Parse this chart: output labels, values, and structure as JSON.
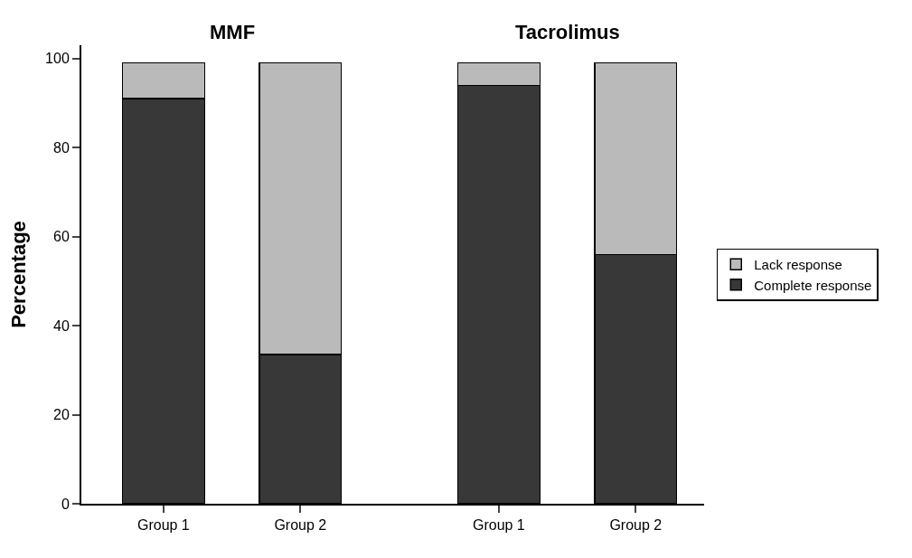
{
  "chart_data": {
    "type": "bar",
    "stacked": true,
    "ylabel": "Percentage",
    "categories": [
      "Group 1",
      "Group 2",
      "Group 1",
      "Group 2"
    ],
    "series": [
      {
        "name": "Complete response",
        "color": "#383838",
        "values": [
          91,
          33.5,
          94,
          56
        ]
      },
      {
        "name": "Lack response",
        "color": "#bababa",
        "values": [
          8,
          65.5,
          5,
          43
        ]
      }
    ],
    "annotations": [
      "MMF",
      "Tacrolimus"
    ],
    "ylim": [
      0,
      103
    ],
    "yticks": [
      0,
      20,
      40,
      60,
      80,
      100
    ],
    "legend": "right"
  }
}
